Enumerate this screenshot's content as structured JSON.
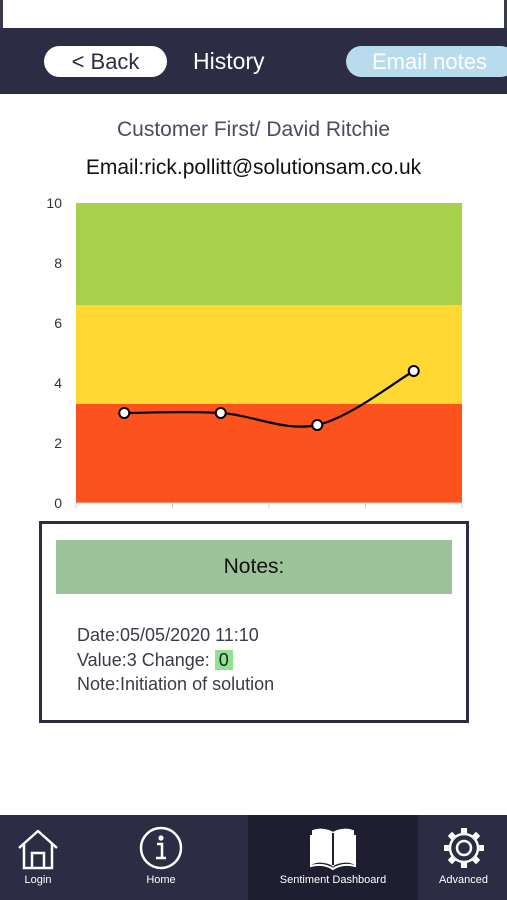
{
  "header": {
    "back_label": "< Back",
    "title": "History",
    "email_label": "Email notes"
  },
  "customer": {
    "name": "Customer First/ David Ritchie",
    "email": "Email:rick.pollitt@solutionsam.co.uk"
  },
  "chart_data": {
    "type": "line",
    "x": [
      1,
      2,
      3,
      4
    ],
    "values": [
      3.0,
      3.0,
      2.6,
      4.4
    ],
    "ylim": [
      0,
      10
    ],
    "yticks": [
      "0",
      "2",
      "4",
      "6",
      "8",
      "10"
    ],
    "bands": [
      {
        "from": 0,
        "to": 3.3,
        "color": "#fc521e"
      },
      {
        "from": 3.3,
        "to": 6.6,
        "color": "#ffd834"
      },
      {
        "from": 6.6,
        "to": 10,
        "color": "#a8d04b"
      }
    ],
    "line_color": "#000000",
    "grid": false
  },
  "notes": {
    "heading": "Notes:",
    "date": "Date:05/05/2020 11:10",
    "value_text": "Value:3 Change: ",
    "change": "0",
    "note": "Note:Initiation of solution"
  },
  "nav": {
    "login": "Login",
    "home": "Home",
    "sentiment": "Sentiment Dashboard",
    "advanced": "Advanced"
  },
  "colors": {
    "header_bg": "#2c2c44",
    "notes_header": "#9dc39b",
    "change_badge": "#8fe38f",
    "email_btn": "#b8dcee"
  }
}
